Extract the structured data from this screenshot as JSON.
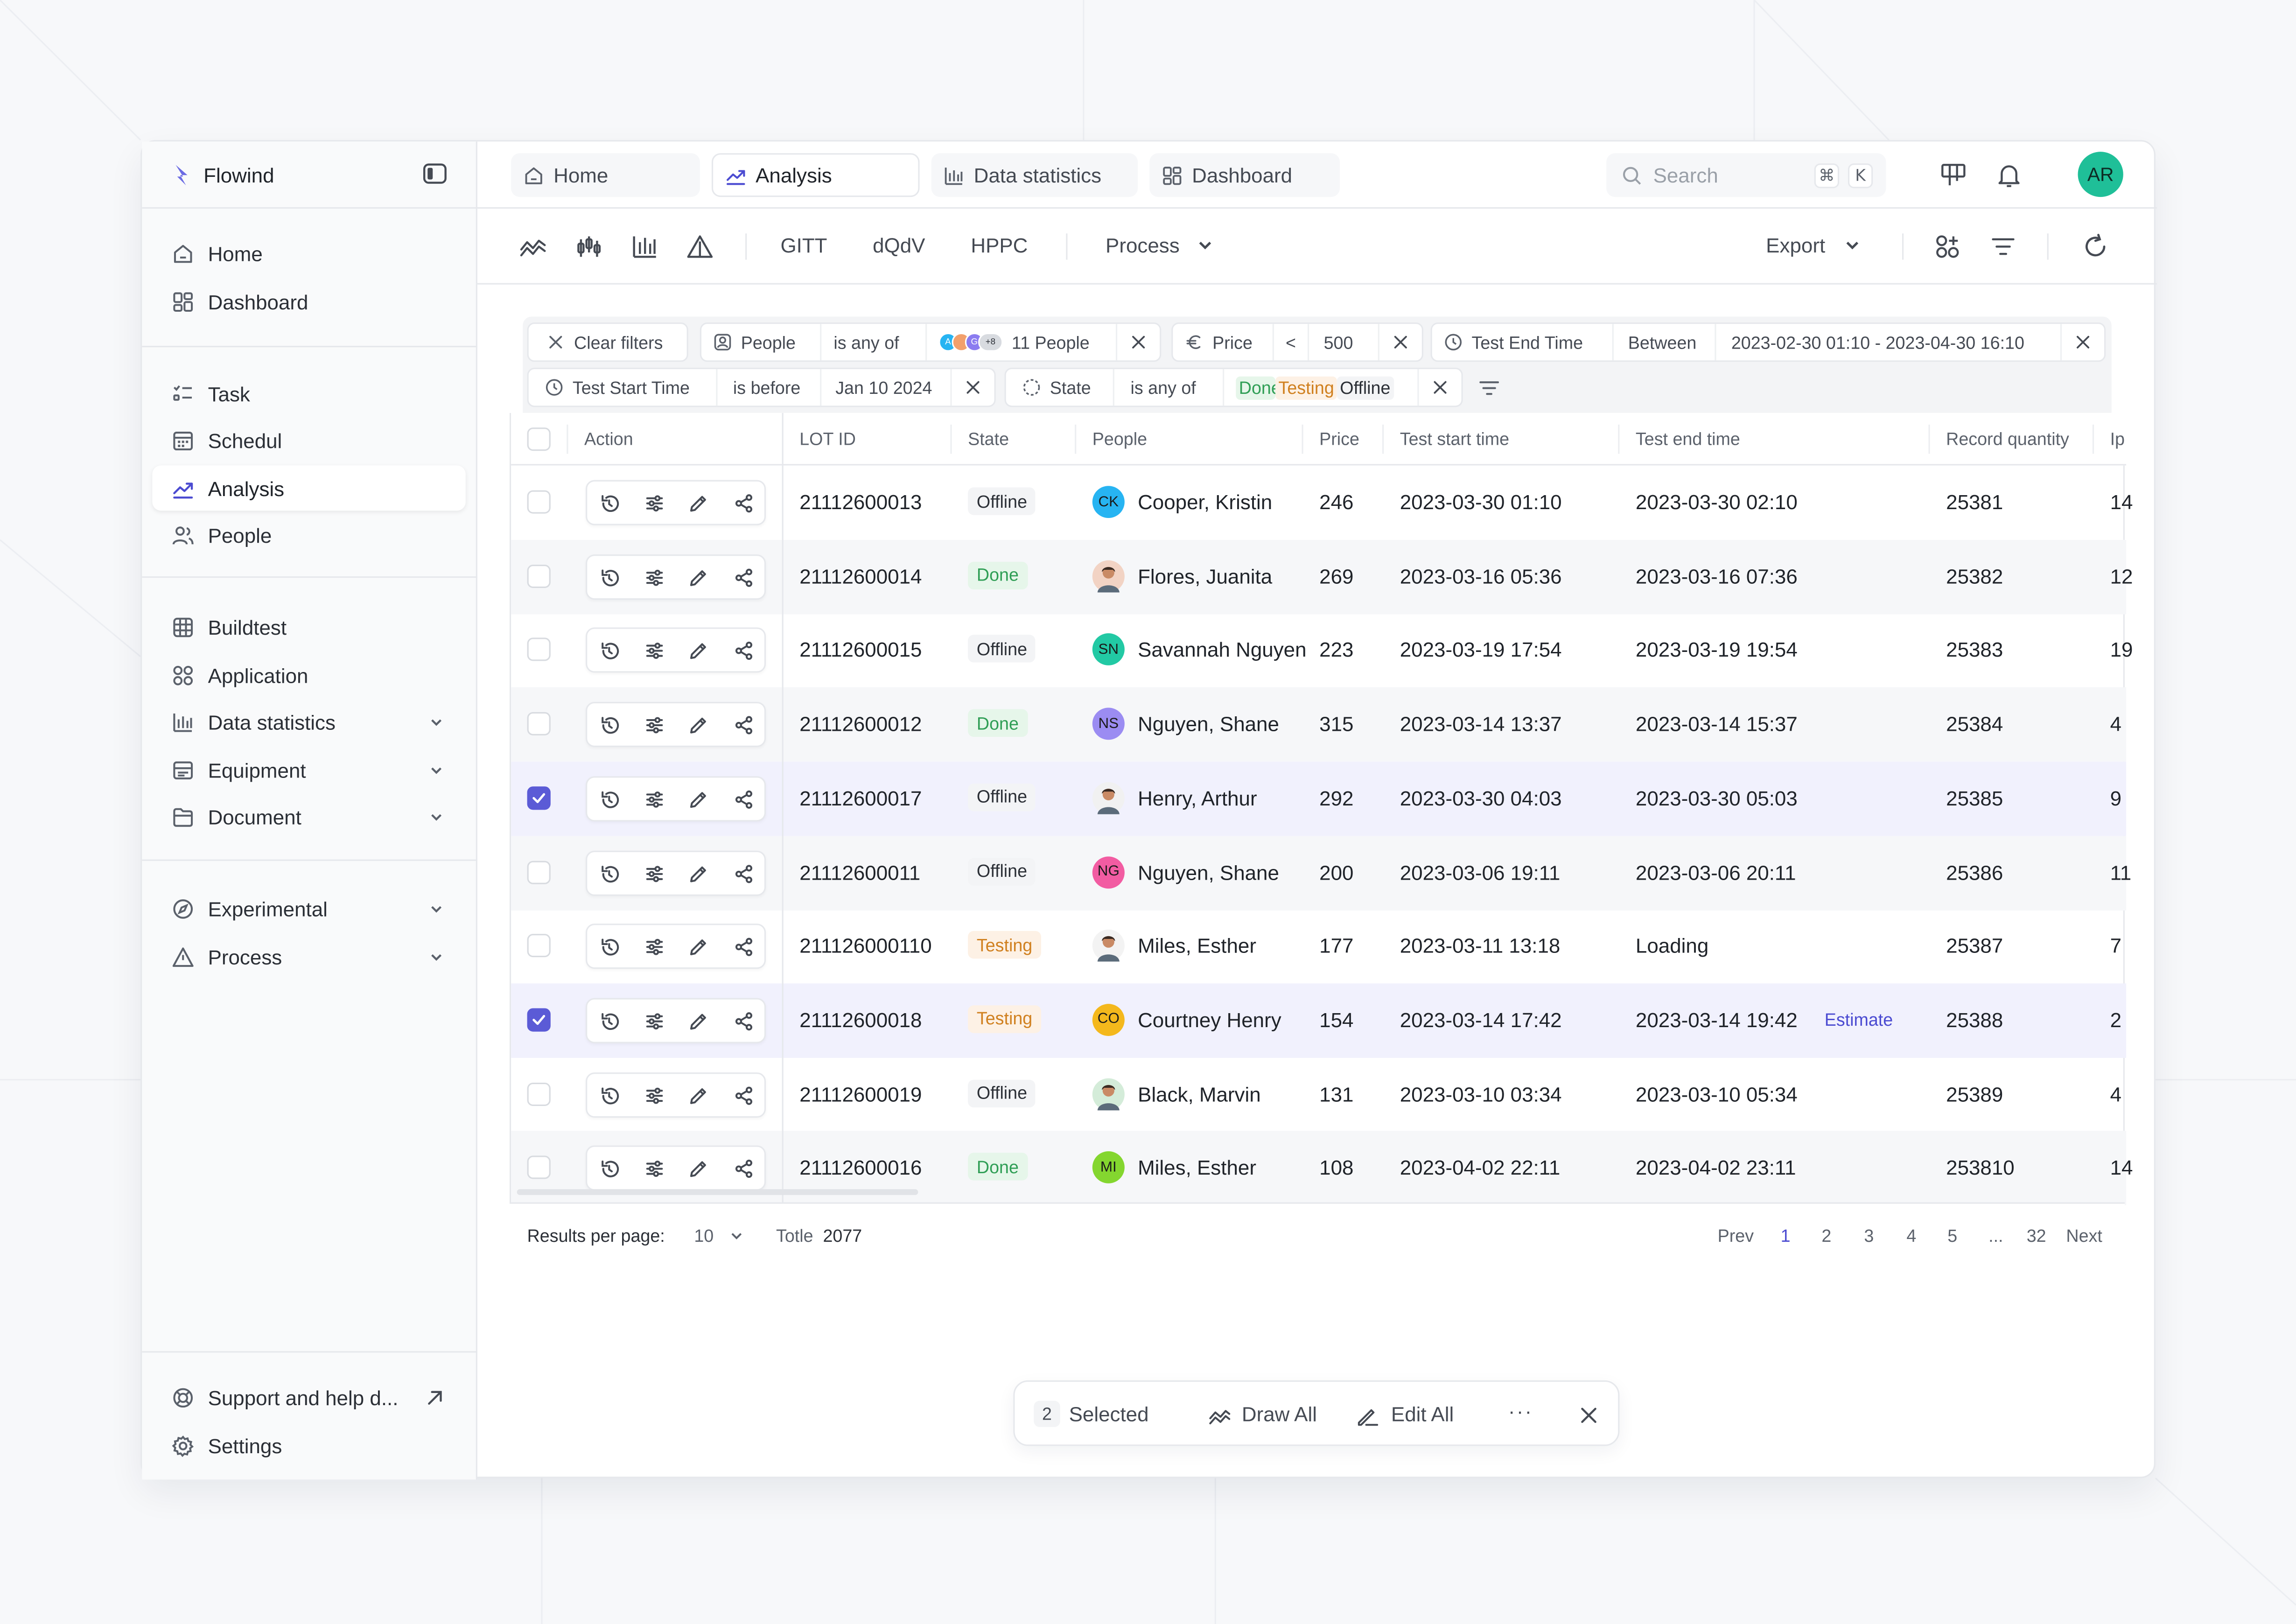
{
  "brand": {
    "name": "Flowind"
  },
  "sidebar": {
    "items": [
      {
        "label": "Home",
        "icon": "home-icon"
      },
      {
        "label": "Dashboard",
        "icon": "dashboard-icon"
      },
      {
        "label": "Task",
        "icon": "task-icon"
      },
      {
        "label": "Schedul",
        "icon": "calendar-icon"
      },
      {
        "label": "Analysis",
        "icon": "analysis-icon",
        "active": true
      },
      {
        "label": "People",
        "icon": "people-icon"
      },
      {
        "label": "Buildtest",
        "icon": "grid-icon"
      },
      {
        "label": "Application",
        "icon": "apps-icon"
      },
      {
        "label": "Data statistics",
        "icon": "bar-chart-icon",
        "expandable": true
      },
      {
        "label": "Equipment",
        "icon": "equipment-icon",
        "expandable": true
      },
      {
        "label": "Document",
        "icon": "folder-icon",
        "expandable": true
      },
      {
        "label": "Experimental",
        "icon": "compass-icon",
        "expandable": true
      },
      {
        "label": "Process",
        "icon": "warning-icon",
        "expandable": true
      }
    ],
    "support_label": "Support and help d...",
    "settings_label": "Settings"
  },
  "tabs": [
    {
      "label": "Home",
      "icon": "home-icon"
    },
    {
      "label": "Analysis",
      "icon": "analysis-icon",
      "active": true
    },
    {
      "label": "Data statistics",
      "icon": "bar-chart-icon"
    },
    {
      "label": "Dashboard",
      "icon": "dashboard-icon"
    }
  ],
  "search": {
    "placeholder": "Search",
    "shortcut_mod": "⌘",
    "shortcut_key": "K"
  },
  "user": {
    "initials": "AR",
    "color": "#1fbf98"
  },
  "toolbar": {
    "text_tabs": [
      "GITT",
      "dQdV",
      "HPPC"
    ],
    "process_label": "Process",
    "export_label": "Export"
  },
  "filters": {
    "clear_label": "Clear filters",
    "people": {
      "field": "People",
      "op": "is any of",
      "value": "11 People",
      "extra": "+8"
    },
    "price": {
      "field": "Price",
      "op": "<",
      "value": "500"
    },
    "end_time": {
      "field": "Test End Time",
      "op": "Between",
      "value": "2023-02-30 01:10 - 2023-04-30 16:10"
    },
    "start_time": {
      "field": "Test Start Time",
      "op": "is before",
      "value": "Jan 10 2024"
    },
    "state": {
      "field": "State",
      "op": "is any of",
      "values": [
        "Done",
        "Testing",
        "Offline"
      ]
    }
  },
  "table": {
    "columns": [
      "Action",
      "LOT ID",
      "State",
      "People",
      "Price",
      "Test start time",
      "Test end time",
      "Record quantity",
      "Ip"
    ],
    "rows": [
      {
        "lot": "21112600013",
        "state": "Offline",
        "person": "Cooper, Kristin",
        "initials": "CK",
        "avcolor": "#27b4f2",
        "price": "246",
        "start": "2023-03-30 01:10",
        "end": "2023-03-30 02:10",
        "qty": "25381",
        "ip": "14",
        "checked": false
      },
      {
        "lot": "21112600014",
        "state": "Done",
        "person": "Flores, Juanita",
        "initials": "",
        "avcolor": "#f2d3c4",
        "price": "269",
        "start": "2023-03-16 05:36",
        "end": "2023-03-16 07:36",
        "qty": "25382",
        "ip": "12",
        "checked": false
      },
      {
        "lot": "21112600015",
        "state": "Offline",
        "person": "Savannah Nguyen",
        "initials": "SN",
        "avcolor": "#22c9a4",
        "price": "223",
        "start": "2023-03-19 17:54",
        "end": "2023-03-19 19:54",
        "qty": "25383",
        "ip": "19",
        "checked": false
      },
      {
        "lot": "21112600012",
        "state": "Done",
        "person": "Nguyen, Shane",
        "initials": "NS",
        "avcolor": "#9b8cf2",
        "price": "315",
        "start": "2023-03-14 13:37",
        "end": "2023-03-14 15:37",
        "qty": "25384",
        "ip": "4",
        "checked": false
      },
      {
        "lot": "21112600017",
        "state": "Offline",
        "person": "Henry, Arthur",
        "initials": "",
        "avcolor": "#f1f1f1",
        "price": "292",
        "start": "2023-03-30 04:03",
        "end": "2023-03-30 05:03",
        "qty": "25385",
        "ip": "9",
        "checked": true
      },
      {
        "lot": "21112600011",
        "state": "Offline",
        "person": "Nguyen, Shane",
        "initials": "NG",
        "avcolor": "#f25ca2",
        "price": "200",
        "start": "2023-03-06 19:11",
        "end": "2023-03-06 20:11",
        "qty": "25386",
        "ip": "11",
        "checked": false
      },
      {
        "lot": "211126000110",
        "state": "Testing",
        "person": "Miles, Esther",
        "initials": "",
        "avcolor": "#f3f3f3",
        "price": "177",
        "start": "2023-03-11 13:18",
        "end": "Loading",
        "qty": "25387",
        "ip": "7",
        "checked": false
      },
      {
        "lot": "21112600018",
        "state": "Testing",
        "person": "Courtney Henry",
        "initials": "CO",
        "avcolor": "#f4b81c",
        "price": "154",
        "start": "2023-03-14 17:42",
        "end": "2023-03-14 19:42",
        "estimate": "Estimate",
        "qty": "25388",
        "ip": "2",
        "checked": true
      },
      {
        "lot": "21112600019",
        "state": "Offline",
        "person": "Black, Marvin",
        "initials": "",
        "avcolor": "#d4ecd9",
        "price": "131",
        "start": "2023-03-10 03:34",
        "end": "2023-03-10 05:34",
        "qty": "25389",
        "ip": "4",
        "checked": false
      },
      {
        "lot": "21112600016",
        "state": "Done",
        "person": "Miles, Esther",
        "initials": "MI",
        "avcolor": "#84d62f",
        "price": "108",
        "start": "2023-04-02 22:11",
        "end": "2023-04-02 23:11",
        "qty": "253810",
        "ip": "14",
        "checked": false
      }
    ]
  },
  "pagination": {
    "per_page_label": "Results per page:",
    "per_page": "10",
    "total_label": "Totle",
    "total": "2077",
    "prev": "Prev",
    "pages": [
      "1",
      "2",
      "3",
      "4",
      "5",
      "...",
      "32"
    ],
    "current": "1",
    "next": "Next"
  },
  "selection_bar": {
    "count": "2",
    "selected_label": "Selected",
    "draw_label": "Draw All",
    "edit_label": "Edit All",
    "more": "···"
  },
  "colors": {
    "accent": "#5b5bd6",
    "done": "#2f9e55",
    "testing": "#d0801f"
  }
}
